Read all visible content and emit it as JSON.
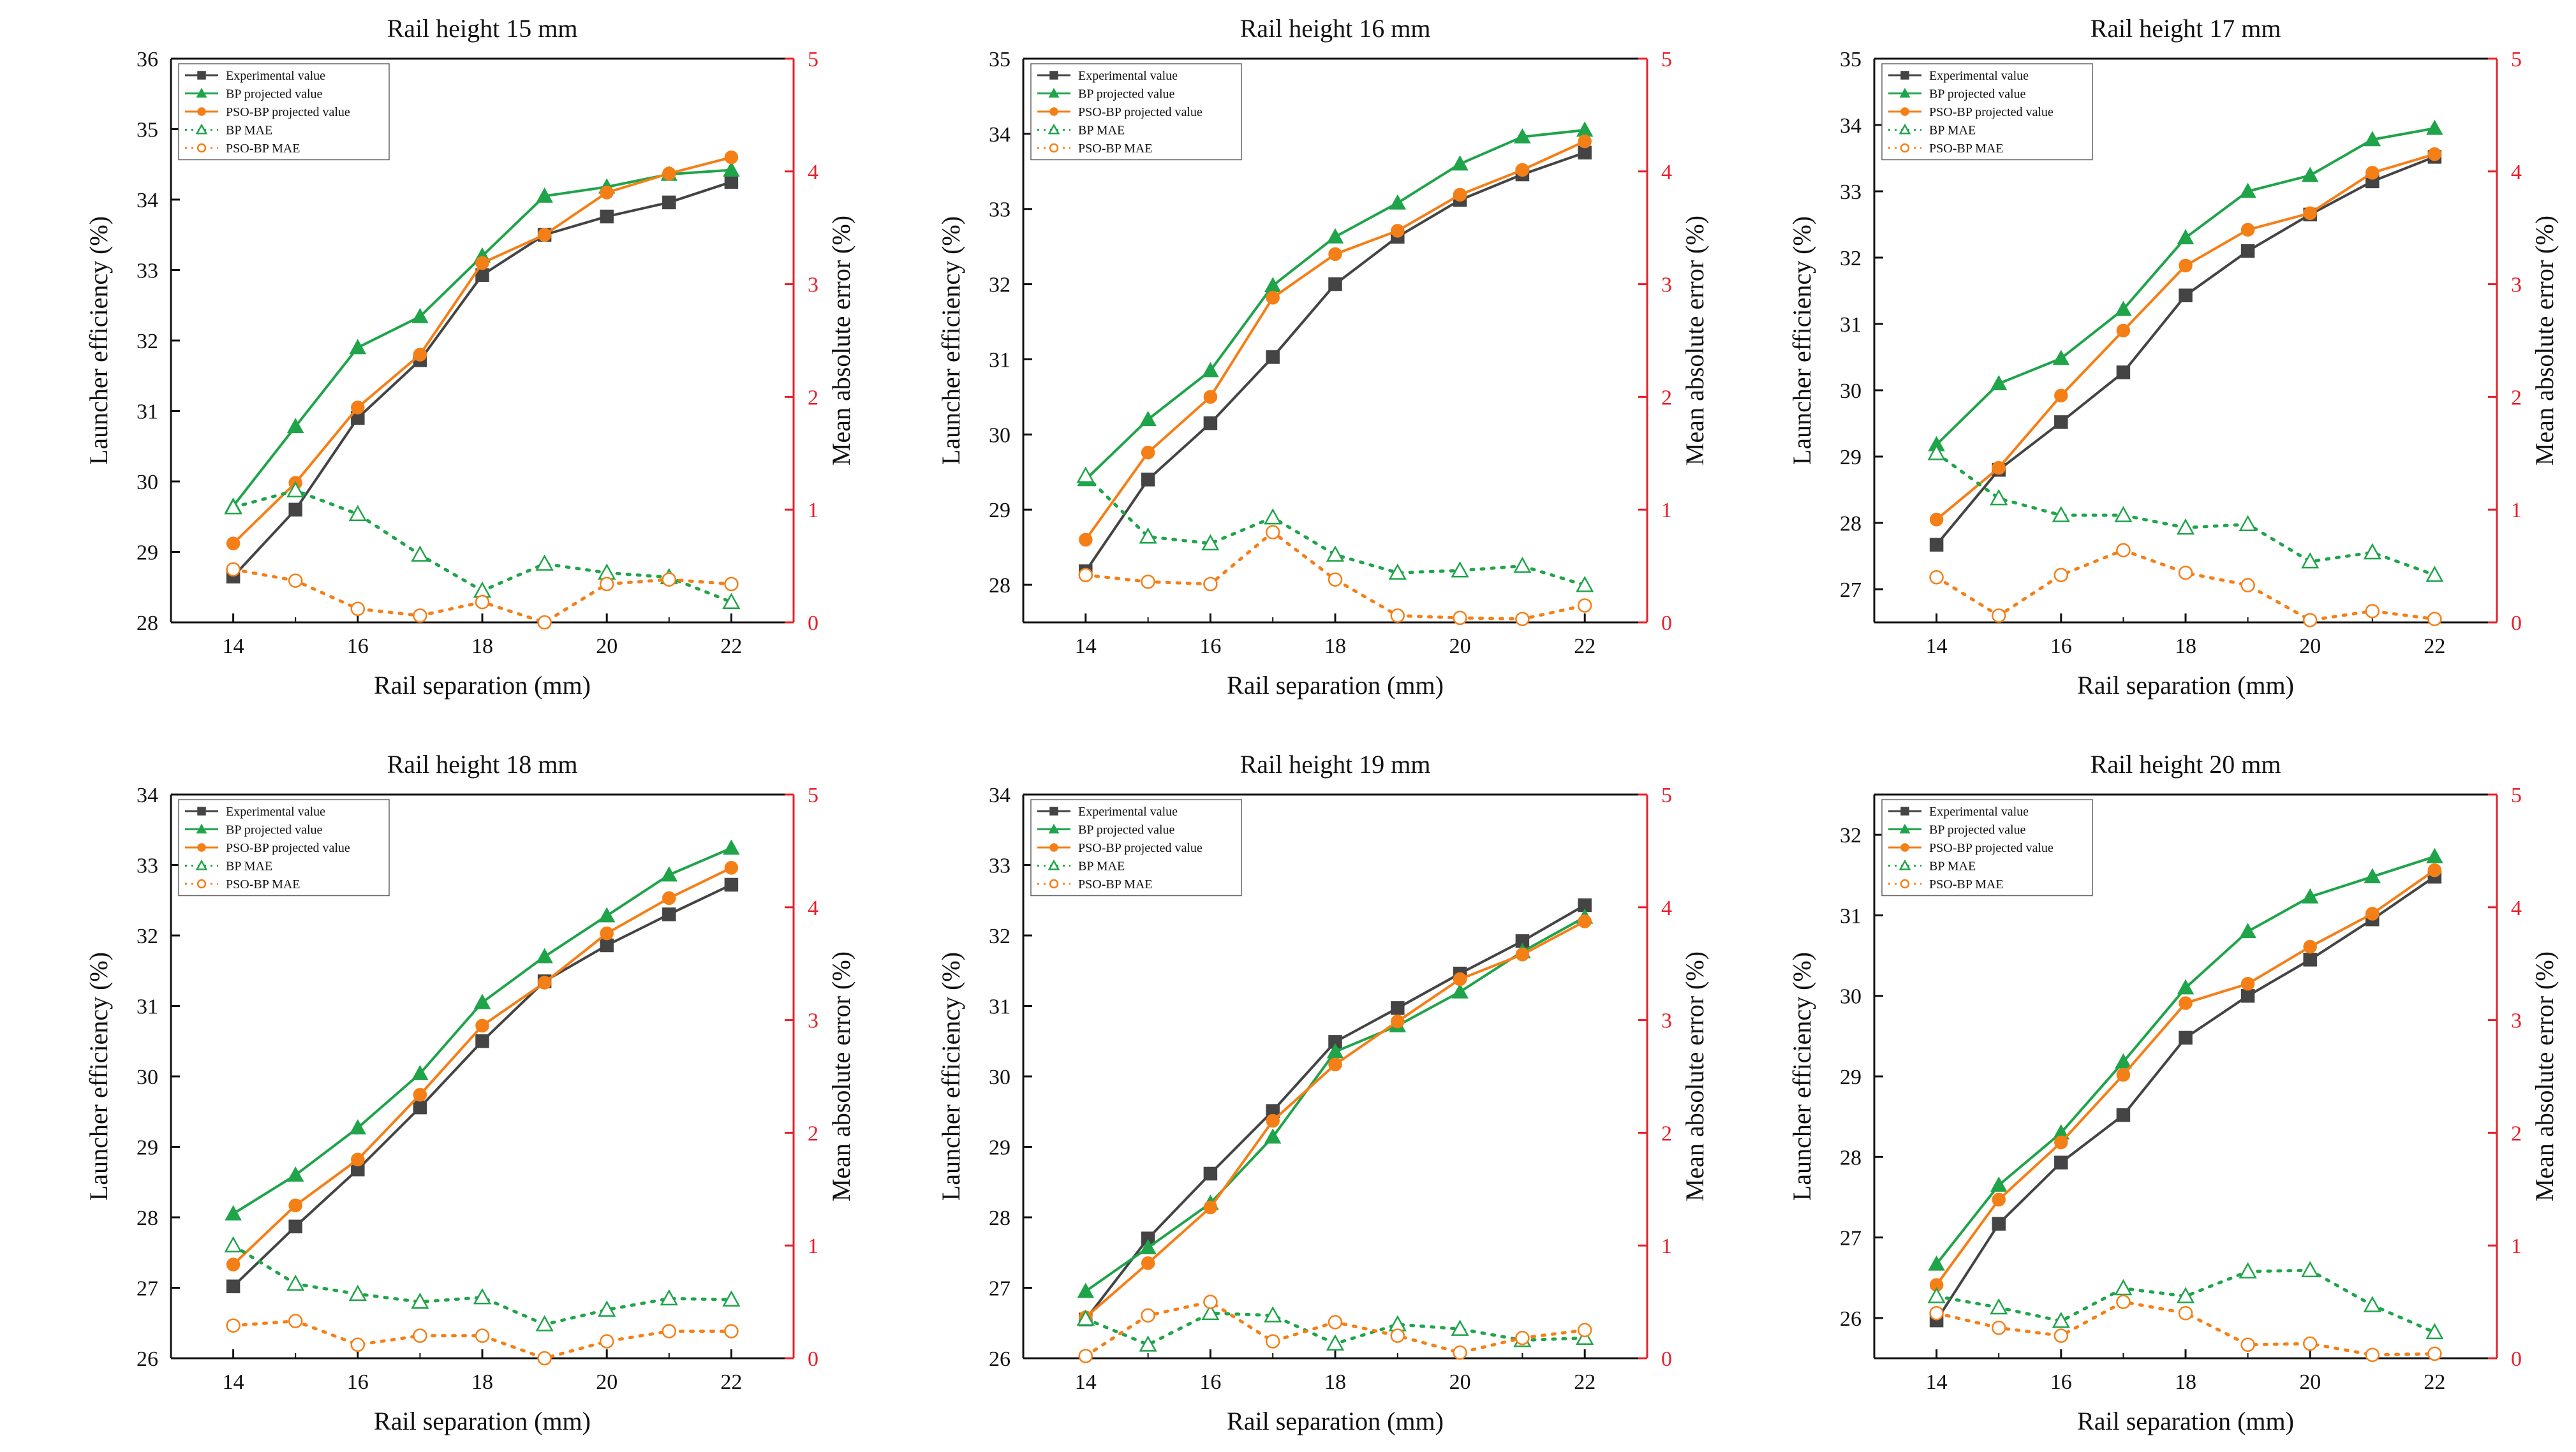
{
  "chart_data": [
    {
      "type": "line",
      "title": "Rail height 15 mm",
      "xlabel": "Rail separation (mm)",
      "ylabel": "Launcher efficiency (%)",
      "y2label": "Mean absolute error (%)",
      "x": [
        14,
        15,
        16,
        17,
        18,
        19,
        20,
        21,
        22
      ],
      "xticks": [
        "14",
        "16",
        "18",
        "20",
        "22"
      ],
      "ylim": [
        28,
        36
      ],
      "yticks": [
        "28",
        "29",
        "30",
        "31",
        "32",
        "33",
        "34",
        "35",
        "36"
      ],
      "y2lim": [
        0,
        5
      ],
      "y2ticks": [
        "0",
        "1",
        "2",
        "3",
        "4",
        "5"
      ],
      "series": [
        {
          "name": "Experimental value",
          "axis": "left",
          "values": [
            28.65,
            29.6,
            30.9,
            31.72,
            32.93,
            33.5,
            33.76,
            33.96,
            34.25
          ]
        },
        {
          "name": "BP projected value",
          "axis": "left",
          "values": [
            29.65,
            30.78,
            31.9,
            32.34,
            33.2,
            34.05,
            34.18,
            34.36,
            34.42
          ]
        },
        {
          "name": "PSO-BP projected value",
          "axis": "left",
          "values": [
            29.12,
            29.98,
            31.05,
            31.8,
            33.1,
            33.5,
            34.1,
            34.37,
            34.6
          ]
        },
        {
          "name": "BP MAE",
          "axis": "right",
          "values": [
            1.02,
            1.17,
            0.96,
            0.6,
            0.28,
            0.52,
            0.44,
            0.4,
            0.18
          ]
        },
        {
          "name": "PSO-BP MAE",
          "axis": "right",
          "values": [
            0.47,
            0.37,
            0.12,
            0.06,
            0.18,
            0.0,
            0.34,
            0.38,
            0.34
          ]
        }
      ]
    },
    {
      "type": "line",
      "title": "Rail height 16 mm",
      "xlabel": "Rail separation (mm)",
      "ylabel": "Launcher efficiency (%)",
      "y2label": "Mean absolute error (%)",
      "x": [
        14,
        15,
        16,
        17,
        18,
        19,
        20,
        21,
        22
      ],
      "xticks": [
        "14",
        "16",
        "18",
        "20",
        "22"
      ],
      "ylim": [
        27.5,
        35
      ],
      "yticks": [
        "28",
        "29",
        "30",
        "31",
        "32",
        "33",
        "34",
        "35"
      ],
      "y2lim": [
        0,
        5
      ],
      "y2ticks": [
        "0",
        "1",
        "2",
        "3",
        "4",
        "5"
      ],
      "series": [
        {
          "name": "Experimental value",
          "axis": "left",
          "values": [
            28.18,
            29.4,
            30.15,
            31.03,
            32.0,
            32.63,
            33.12,
            33.46,
            33.75
          ]
        },
        {
          "name": "BP projected value",
          "axis": "left",
          "values": [
            29.4,
            30.2,
            30.85,
            31.98,
            32.63,
            33.08,
            33.6,
            33.96,
            34.05
          ]
        },
        {
          "name": "PSO-BP projected value",
          "axis": "left",
          "values": [
            28.6,
            29.76,
            30.5,
            31.82,
            32.4,
            32.71,
            33.19,
            33.52,
            33.9
          ]
        },
        {
          "name": "BP MAE",
          "axis": "right",
          "values": [
            1.3,
            0.76,
            0.7,
            0.93,
            0.6,
            0.44,
            0.46,
            0.5,
            0.33
          ]
        },
        {
          "name": "PSO-BP MAE",
          "axis": "right",
          "values": [
            0.42,
            0.36,
            0.34,
            0.8,
            0.38,
            0.06,
            0.04,
            0.03,
            0.15
          ]
        }
      ]
    },
    {
      "type": "line",
      "title": "Rail height 17 mm",
      "xlabel": "Rail separation (mm)",
      "ylabel": "Launcher efficiency (%)",
      "y2label": "Mean absolute error (%)",
      "x": [
        14,
        15,
        16,
        17,
        18,
        19,
        20,
        21,
        22
      ],
      "xticks": [
        "14",
        "16",
        "18",
        "20",
        "22"
      ],
      "ylim": [
        26.5,
        35
      ],
      "yticks": [
        "27",
        "28",
        "29",
        "30",
        "31",
        "32",
        "33",
        "34",
        "35"
      ],
      "y2lim": [
        0,
        5
      ],
      "y2ticks": [
        "0",
        "1",
        "2",
        "3",
        "4",
        "5"
      ],
      "series": [
        {
          "name": "Experimental value",
          "axis": "left",
          "values": [
            27.67,
            28.8,
            29.52,
            30.27,
            31.43,
            32.1,
            32.65,
            33.15,
            33.52
          ]
        },
        {
          "name": "BP projected value",
          "axis": "left",
          "values": [
            29.18,
            30.1,
            30.48,
            31.22,
            32.3,
            33.0,
            33.24,
            33.78,
            33.95
          ]
        },
        {
          "name": "PSO-BP projected value",
          "axis": "left",
          "values": [
            28.05,
            28.83,
            29.92,
            30.9,
            31.88,
            32.42,
            32.67,
            33.28,
            33.56
          ]
        },
        {
          "name": "BP MAE",
          "axis": "right",
          "values": [
            1.5,
            1.1,
            0.95,
            0.95,
            0.84,
            0.87,
            0.54,
            0.62,
            0.42
          ]
        },
        {
          "name": "PSO-BP MAE",
          "axis": "right",
          "values": [
            0.4,
            0.06,
            0.42,
            0.64,
            0.44,
            0.33,
            0.02,
            0.1,
            0.03
          ]
        }
      ]
    },
    {
      "type": "line",
      "title": "Rail height 18 mm",
      "xlabel": "Rail separation (mm)",
      "ylabel": "Launcher efficiency (%)",
      "y2label": "Mean absolute error (%)",
      "x": [
        14,
        15,
        16,
        17,
        18,
        19,
        20,
        21,
        22
      ],
      "xticks": [
        "14",
        "16",
        "18",
        "20",
        "22"
      ],
      "ylim": [
        26,
        34
      ],
      "yticks": [
        "26",
        "27",
        "28",
        "29",
        "30",
        "31",
        "32",
        "33",
        "34"
      ],
      "y2lim": [
        0,
        5
      ],
      "y2ticks": [
        "0",
        "1",
        "2",
        "3",
        "4",
        "5"
      ],
      "series": [
        {
          "name": "Experimental value",
          "axis": "left",
          "values": [
            27.02,
            27.87,
            28.68,
            29.56,
            30.5,
            31.35,
            31.86,
            32.3,
            32.72
          ]
        },
        {
          "name": "BP projected value",
          "axis": "left",
          "values": [
            28.05,
            28.6,
            29.27,
            30.04,
            31.05,
            31.7,
            32.28,
            32.86,
            33.24
          ]
        },
        {
          "name": "PSO-BP projected value",
          "axis": "left",
          "values": [
            27.33,
            28.17,
            28.82,
            29.74,
            30.72,
            31.33,
            32.03,
            32.53,
            32.96
          ]
        },
        {
          "name": "BP MAE",
          "axis": "right",
          "values": [
            1.0,
            0.66,
            0.57,
            0.5,
            0.54,
            0.3,
            0.43,
            0.53,
            0.52
          ]
        },
        {
          "name": "PSO-BP MAE",
          "axis": "right",
          "values": [
            0.29,
            0.33,
            0.12,
            0.2,
            0.2,
            0.0,
            0.15,
            0.24,
            0.24
          ]
        }
      ]
    },
    {
      "type": "line",
      "title": "Rail height 19 mm",
      "xlabel": "Rail separation (mm)",
      "ylabel": "Launcher efficiency (%)",
      "y2label": "Mean absolute error (%)",
      "x": [
        14,
        15,
        16,
        17,
        18,
        19,
        20,
        21,
        22
      ],
      "xticks": [
        "14",
        "16",
        "18",
        "20",
        "22"
      ],
      "ylim": [
        26,
        34
      ],
      "yticks": [
        "26",
        "27",
        "28",
        "29",
        "30",
        "31",
        "32",
        "33",
        "34"
      ],
      "y2lim": [
        0,
        5
      ],
      "y2ticks": [
        "0",
        "1",
        "2",
        "3",
        "4",
        "5"
      ],
      "series": [
        {
          "name": "Experimental value",
          "axis": "left",
          "values": [
            26.55,
            27.7,
            28.62,
            29.51,
            30.49,
            30.97,
            31.46,
            31.92,
            32.43
          ]
        },
        {
          "name": "BP projected value",
          "axis": "left",
          "values": [
            26.95,
            27.57,
            28.2,
            29.14,
            30.35,
            30.72,
            31.2,
            31.77,
            32.26
          ]
        },
        {
          "name": "PSO-BP projected value",
          "axis": "left",
          "values": [
            26.58,
            27.35,
            28.14,
            29.37,
            30.17,
            30.78,
            31.38,
            31.73,
            32.2
          ]
        },
        {
          "name": "BP MAE",
          "axis": "right",
          "values": [
            0.35,
            0.12,
            0.4,
            0.38,
            0.13,
            0.3,
            0.26,
            0.16,
            0.18
          ]
        },
        {
          "name": "PSO-BP MAE",
          "axis": "right",
          "values": [
            0.02,
            0.38,
            0.5,
            0.15,
            0.32,
            0.2,
            0.05,
            0.18,
            0.25
          ]
        }
      ]
    },
    {
      "type": "line",
      "title": "Rail height 20 mm",
      "xlabel": "Rail separation (mm)",
      "ylabel": "Launcher efficiency (%)",
      "y2label": "Mean absolute error (%)",
      "x": [
        14,
        15,
        16,
        17,
        18,
        19,
        20,
        21,
        22
      ],
      "xticks": [
        "14",
        "16",
        "18",
        "20",
        "22"
      ],
      "ylim": [
        25.5,
        32.5
      ],
      "yticks": [
        "26",
        "27",
        "28",
        "29",
        "30",
        "31",
        "32"
      ],
      "y2lim": [
        0,
        5
      ],
      "y2ticks": [
        "0",
        "1",
        "2",
        "3",
        "4",
        "5"
      ],
      "series": [
        {
          "name": "Experimental value",
          "axis": "left",
          "values": [
            25.97,
            27.17,
            27.93,
            28.52,
            29.48,
            30.0,
            30.45,
            30.95,
            31.48
          ]
        },
        {
          "name": "BP projected value",
          "axis": "left",
          "values": [
            26.67,
            27.65,
            28.3,
            29.18,
            30.1,
            30.8,
            31.23,
            31.48,
            31.73
          ]
        },
        {
          "name": "PSO-BP projected value",
          "axis": "left",
          "values": [
            26.41,
            27.47,
            28.18,
            29.02,
            29.91,
            30.15,
            30.61,
            31.02,
            31.56
          ]
        },
        {
          "name": "BP MAE",
          "axis": "right",
          "values": [
            0.55,
            0.45,
            0.33,
            0.62,
            0.55,
            0.77,
            0.78,
            0.47,
            0.23
          ]
        },
        {
          "name": "PSO-BP MAE",
          "axis": "right",
          "values": [
            0.4,
            0.27,
            0.2,
            0.5,
            0.4,
            0.12,
            0.13,
            0.03,
            0.04
          ]
        }
      ]
    }
  ],
  "colors": {
    "experimental": "#444444",
    "bp": "#1fa44a",
    "psobp": "#f57f17",
    "right_axis": "#e8202a"
  }
}
